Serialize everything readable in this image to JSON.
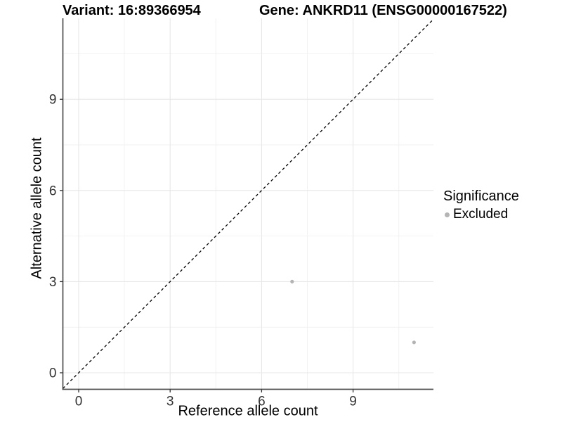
{
  "header": {
    "variant_title": "Variant: 16:89366954",
    "gene_title": "Gene: ANKRD11 (ENSG00000167522)"
  },
  "chart_data": {
    "type": "scatter",
    "title_left": "Variant: 16:89366954",
    "title_right": "Gene: ANKRD11 (ENSG00000167522)",
    "xlabel": "Reference allele count",
    "ylabel": "Alternative allele count",
    "xlim": [
      -0.55,
      11.65
    ],
    "ylim": [
      -0.55,
      11.65
    ],
    "x_ticks": {
      "values": [
        0,
        3,
        6,
        9
      ],
      "labels": [
        "0",
        "3",
        "6",
        "9"
      ]
    },
    "y_ticks": {
      "values": [
        0,
        3,
        6,
        9
      ],
      "labels": [
        "0",
        "3",
        "6",
        "9"
      ]
    },
    "x_minor": [
      1.5,
      4.5,
      7.5,
      10.5
    ],
    "y_minor": [
      1.5,
      4.5,
      7.5,
      10.5
    ],
    "grid": true,
    "points": [
      {
        "x": 7,
        "y": 3,
        "series": "Excluded"
      },
      {
        "x": 11,
        "y": 1,
        "series": "Excluded"
      }
    ],
    "identity_line": {
      "equation": "y = x",
      "style": "dashed",
      "color": "#000000"
    },
    "legend": {
      "position": "right",
      "title": "Significance",
      "items": [
        {
          "label": "Excluded",
          "color": "#b4b4b4"
        }
      ]
    },
    "colors": {
      "point": "#b4b4b4",
      "grid_major": "#e7e7e7",
      "grid_minor": "#f2f2f2",
      "axis_line": "#4d4d4d",
      "tick_mark": "#333333",
      "tick_label": "#333333",
      "panel_background": "#ffffff"
    }
  }
}
